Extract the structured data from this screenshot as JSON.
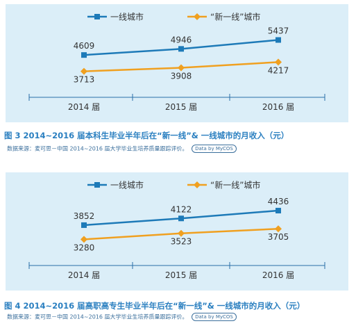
{
  "chart_data": [
    {
      "type": "line",
      "categories": [
        "2014 届",
        "2015 届",
        "2016 届"
      ],
      "series": [
        {
          "name": "一线城市",
          "values": [
            4609,
            4946,
            5437
          ],
          "color": "#1d7ab8",
          "marker": "square"
        },
        {
          "name": "“新一线”城市",
          "values": [
            3713,
            3908,
            4217
          ],
          "color": "#f0a020",
          "marker": "diamond"
        }
      ],
      "title": "图 3  2014~2016 届本科生毕业半年后在“新一线”& 一线城市的月收入（元）",
      "source": "数据来源：麦可思－中国 2014~2016 届大学毕业生培养质量跟踪评价。",
      "badge": "Data by MyCOS",
      "legend": "top",
      "grid": false,
      "background": "#dbeef8",
      "ylim": [
        3200,
        5800
      ]
    },
    {
      "type": "line",
      "categories": [
        "2014 届",
        "2015 届",
        "2016 届"
      ],
      "series": [
        {
          "name": "一线城市",
          "values": [
            3852,
            4122,
            4436
          ],
          "color": "#1d7ab8",
          "marker": "square"
        },
        {
          "name": "“新一线”城市",
          "values": [
            3280,
            3523,
            3705
          ],
          "color": "#f0a020",
          "marker": "diamond"
        }
      ],
      "title": "图 4  2014~2016 届高职高专生毕业半年后在“新一线”& 一线城市的月收入（元）",
      "source": "数据来源：麦可思－中国 2014~2016 届大学毕业生培养质量跟踪评价。",
      "badge": "Data by MyCOS",
      "legend": "top",
      "grid": false,
      "background": "#dbeef8",
      "ylim": [
        2900,
        4800
      ]
    }
  ]
}
